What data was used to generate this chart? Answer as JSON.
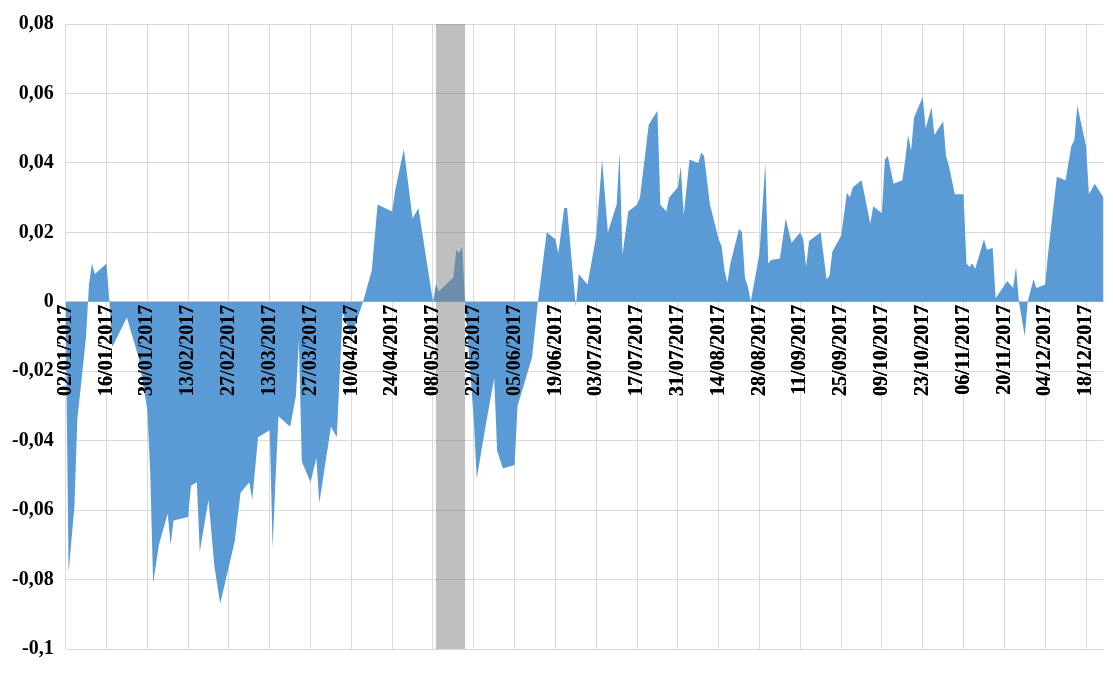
{
  "chart_data": {
    "type": "area",
    "x": [
      "2017-01-02",
      "2017-01-03",
      "2017-01-05",
      "2017-01-06",
      "2017-01-09",
      "2017-01-10",
      "2017-01-11",
      "2017-01-12",
      "2017-01-16",
      "2017-01-17",
      "2017-01-18",
      "2017-01-23",
      "2017-01-27",
      "2017-01-30",
      "2017-01-31",
      "2017-02-01",
      "2017-02-03",
      "2017-02-06",
      "2017-02-07",
      "2017-02-08",
      "2017-02-13",
      "2017-02-14",
      "2017-02-16",
      "2017-02-17",
      "2017-02-20",
      "2017-02-22",
      "2017-02-24",
      "2017-03-01",
      "2017-03-03",
      "2017-03-06",
      "2017-03-07",
      "2017-03-09",
      "2017-03-13",
      "2017-03-14",
      "2017-03-15",
      "2017-03-16",
      "2017-03-20",
      "2017-03-22",
      "2017-03-23",
      "2017-03-24",
      "2017-03-27",
      "2017-03-29",
      "2017-03-30",
      "2017-04-03",
      "2017-04-05",
      "2017-04-07",
      "2017-04-10",
      "2017-04-14",
      "2017-04-17",
      "2017-04-19",
      "2017-04-24",
      "2017-04-25",
      "2017-04-28",
      "2017-05-01",
      "2017-05-03",
      "2017-05-08",
      "2017-05-09",
      "2017-05-10",
      "2017-05-15",
      "2017-05-16",
      "2017-05-17",
      "2017-05-18",
      "2017-05-19",
      "2017-05-22",
      "2017-05-23",
      "2017-05-26",
      "2017-05-29",
      "2017-05-30",
      "2017-06-01",
      "2017-06-05",
      "2017-06-06",
      "2017-06-11",
      "2017-06-13",
      "2017-06-16",
      "2017-06-19",
      "2017-06-20",
      "2017-06-22",
      "2017-06-23",
      "2017-06-26",
      "2017-06-27",
      "2017-06-30",
      "2017-07-03",
      "2017-07-05",
      "2017-07-07",
      "2017-07-10",
      "2017-07-11",
      "2017-07-12",
      "2017-07-14",
      "2017-07-17",
      "2017-07-18",
      "2017-07-21",
      "2017-07-24",
      "2017-07-25",
      "2017-07-27",
      "2017-07-28",
      "2017-07-31",
      "2017-08-01",
      "2017-08-02",
      "2017-08-04",
      "2017-08-07",
      "2017-08-08",
      "2017-08-09",
      "2017-08-11",
      "2017-08-14",
      "2017-08-15",
      "2017-08-16",
      "2017-08-17",
      "2017-08-18",
      "2017-08-21",
      "2017-08-22",
      "2017-08-23",
      "2017-08-24",
      "2017-08-25",
      "2017-08-28",
      "2017-08-30",
      "2017-08-31",
      "2017-09-01",
      "2017-09-04",
      "2017-09-06",
      "2017-09-08",
      "2017-09-11",
      "2017-09-12",
      "2017-09-13",
      "2017-09-14",
      "2017-09-18",
      "2017-09-20",
      "2017-09-21",
      "2017-09-22",
      "2017-09-25",
      "2017-09-27",
      "2017-09-28",
      "2017-09-29",
      "2017-10-02",
      "2017-10-03",
      "2017-10-05",
      "2017-10-06",
      "2017-10-09",
      "2017-10-10",
      "2017-10-11",
      "2017-10-13",
      "2017-10-16",
      "2017-10-17",
      "2017-10-18",
      "2017-10-19",
      "2017-10-20",
      "2017-10-23",
      "2017-10-24",
      "2017-10-26",
      "2017-10-27",
      "2017-10-30",
      "2017-10-31",
      "2017-11-01",
      "2017-11-03",
      "2017-11-06",
      "2017-11-07",
      "2017-11-08",
      "2017-11-09",
      "2017-11-10",
      "2017-11-13",
      "2017-11-14",
      "2017-11-16",
      "2017-11-17",
      "2017-11-21",
      "2017-11-23",
      "2017-11-24",
      "2017-11-25",
      "2017-11-27",
      "2017-11-28",
      "2017-11-30",
      "2017-12-01",
      "2017-12-04",
      "2017-12-05",
      "2017-12-08",
      "2017-12-11",
      "2017-12-13",
      "2017-12-14",
      "2017-12-15",
      "2017-12-18",
      "2017-12-19",
      "2017-12-21",
      "2017-12-24"
    ],
    "series": [
      {
        "color": "#5b9bd5",
        "values": [
          -0.002,
          -0.078,
          -0.059,
          -0.034,
          -0.01,
          0.005,
          0.011,
          0.008,
          0.011,
          0,
          -0.013,
          -0.0045,
          -0.016,
          -0.031,
          -0.049,
          -0.081,
          -0.07,
          -0.061,
          -0.07,
          -0.063,
          -0.062,
          -0.053,
          -0.052,
          -0.072,
          -0.057,
          -0.076,
          -0.087,
          -0.069,
          -0.055,
          -0.052,
          -0.057,
          -0.039,
          -0.037,
          -0.071,
          -0.051,
          -0.033,
          -0.036,
          -0.027,
          -0.011,
          -0.046,
          -0.052,
          -0.045,
          -0.058,
          -0.036,
          -0.039,
          -0.003,
          -0.01,
          0,
          0.009,
          0.028,
          0.026,
          0.032,
          0.044,
          0.024,
          0.027,
          0,
          0.005,
          0.003,
          0.007,
          0.015,
          0.014,
          0.016,
          0,
          -0.034,
          -0.051,
          -0.036,
          -0.022,
          -0.043,
          -0.048,
          -0.047,
          -0.03,
          -0.016,
          0,
          0.02,
          0.018,
          0.014,
          0.027,
          0.027,
          -0.0015,
          0.008,
          0.005,
          0.019,
          0.041,
          0.02,
          0.028,
          0.043,
          0.0135,
          0.026,
          0.028,
          0.03,
          0.051,
          0.055,
          0.028,
          0.026,
          0.03,
          0.033,
          0.039,
          0.025,
          0.041,
          0.04,
          0.043,
          0.042,
          0.028,
          0.018,
          0.016,
          0.009,
          0.0055,
          0.011,
          0.021,
          0.02,
          0.007,
          0.0045,
          0,
          0.014,
          0.04,
          0.011,
          0.012,
          0.0125,
          0.024,
          0.017,
          0.02,
          0.018,
          0.01,
          0.0175,
          0.02,
          0.0065,
          0.0075,
          0.0145,
          0.019,
          0.0315,
          0.03,
          0.033,
          0.035,
          0.031,
          0.0225,
          0.0275,
          0.0255,
          0.041,
          0.042,
          0.034,
          0.035,
          0.041,
          0.048,
          0.0435,
          0.053,
          0.059,
          0.05,
          0.056,
          0.048,
          0.052,
          0.042,
          0.039,
          0.031,
          0.031,
          0.011,
          0.01,
          0.011,
          0.0095,
          0.018,
          0.015,
          0.0155,
          0.001,
          0.006,
          0.004,
          0.01,
          0,
          -0.01,
          0,
          0.0065,
          0.004,
          0.005,
          0.014,
          0.036,
          0.035,
          0.045,
          0.0465,
          0.0565,
          0.045,
          0.031,
          0.034,
          0.03
        ]
      }
    ],
    "xlim": [
      "2017-01-02",
      "2017-12-24"
    ],
    "xticks": [
      {
        "value": "2017-01-02",
        "label": "02/01/2017"
      },
      {
        "value": "2017-01-16",
        "label": "16/01/2017"
      },
      {
        "value": "2017-01-30",
        "label": "30/01/2017"
      },
      {
        "value": "2017-02-13",
        "label": "13/02/2017"
      },
      {
        "value": "2017-02-27",
        "label": "27/02/2017"
      },
      {
        "value": "2017-03-13",
        "label": "13/03/2017"
      },
      {
        "value": "2017-03-27",
        "label": "27/03/2017"
      },
      {
        "value": "2017-04-10",
        "label": "10/04/2017"
      },
      {
        "value": "2017-04-24",
        "label": "24/04/2017"
      },
      {
        "value": "2017-05-08",
        "label": "08/05/2017"
      },
      {
        "value": "2017-05-22",
        "label": "22/05/2017"
      },
      {
        "value": "2017-06-05",
        "label": "05/06/2017"
      },
      {
        "value": "2017-06-19",
        "label": "19/06/2017"
      },
      {
        "value": "2017-07-03",
        "label": "03/07/2017"
      },
      {
        "value": "2017-07-17",
        "label": "17/07/2017"
      },
      {
        "value": "2017-07-31",
        "label": "31/07/2017"
      },
      {
        "value": "2017-08-14",
        "label": "14/08/2017"
      },
      {
        "value": "2017-08-28",
        "label": "28/08/2017"
      },
      {
        "value": "2017-09-11",
        "label": "11/09/2017"
      },
      {
        "value": "2017-09-25",
        "label": "25/09/2017"
      },
      {
        "value": "2017-10-09",
        "label": "09/10/2017"
      },
      {
        "value": "2017-10-23",
        "label": "23/10/2017"
      },
      {
        "value": "2017-11-06",
        "label": "06/11/2017"
      },
      {
        "value": "2017-11-20",
        "label": "20/11/2017"
      },
      {
        "value": "2017-12-04",
        "label": "04/12/2017"
      },
      {
        "value": "2017-12-18",
        "label": "18/12/2017"
      }
    ],
    "ylim": [
      -0.1,
      0.08
    ],
    "yticks": [
      {
        "value": -0.1,
        "label": "-0,1"
      },
      {
        "value": -0.08,
        "label": "-0,08"
      },
      {
        "value": -0.06,
        "label": "-0,06"
      },
      {
        "value": -0.04,
        "label": "-0,04"
      },
      {
        "value": -0.02,
        "label": "-0,02"
      },
      0,
      {
        "value": 0.02,
        "label": "0,02"
      },
      {
        "value": 0.04,
        "label": "0,04"
      },
      {
        "value": 0.06,
        "label": "0,06"
      },
      {
        "value": 0.08,
        "label": "0,08"
      }
    ],
    "bands": [
      {
        "axis": "x",
        "from": "2017-05-09",
        "to": "2017-05-19",
        "color": "#7f7f7f"
      }
    ],
    "grid": true
  }
}
